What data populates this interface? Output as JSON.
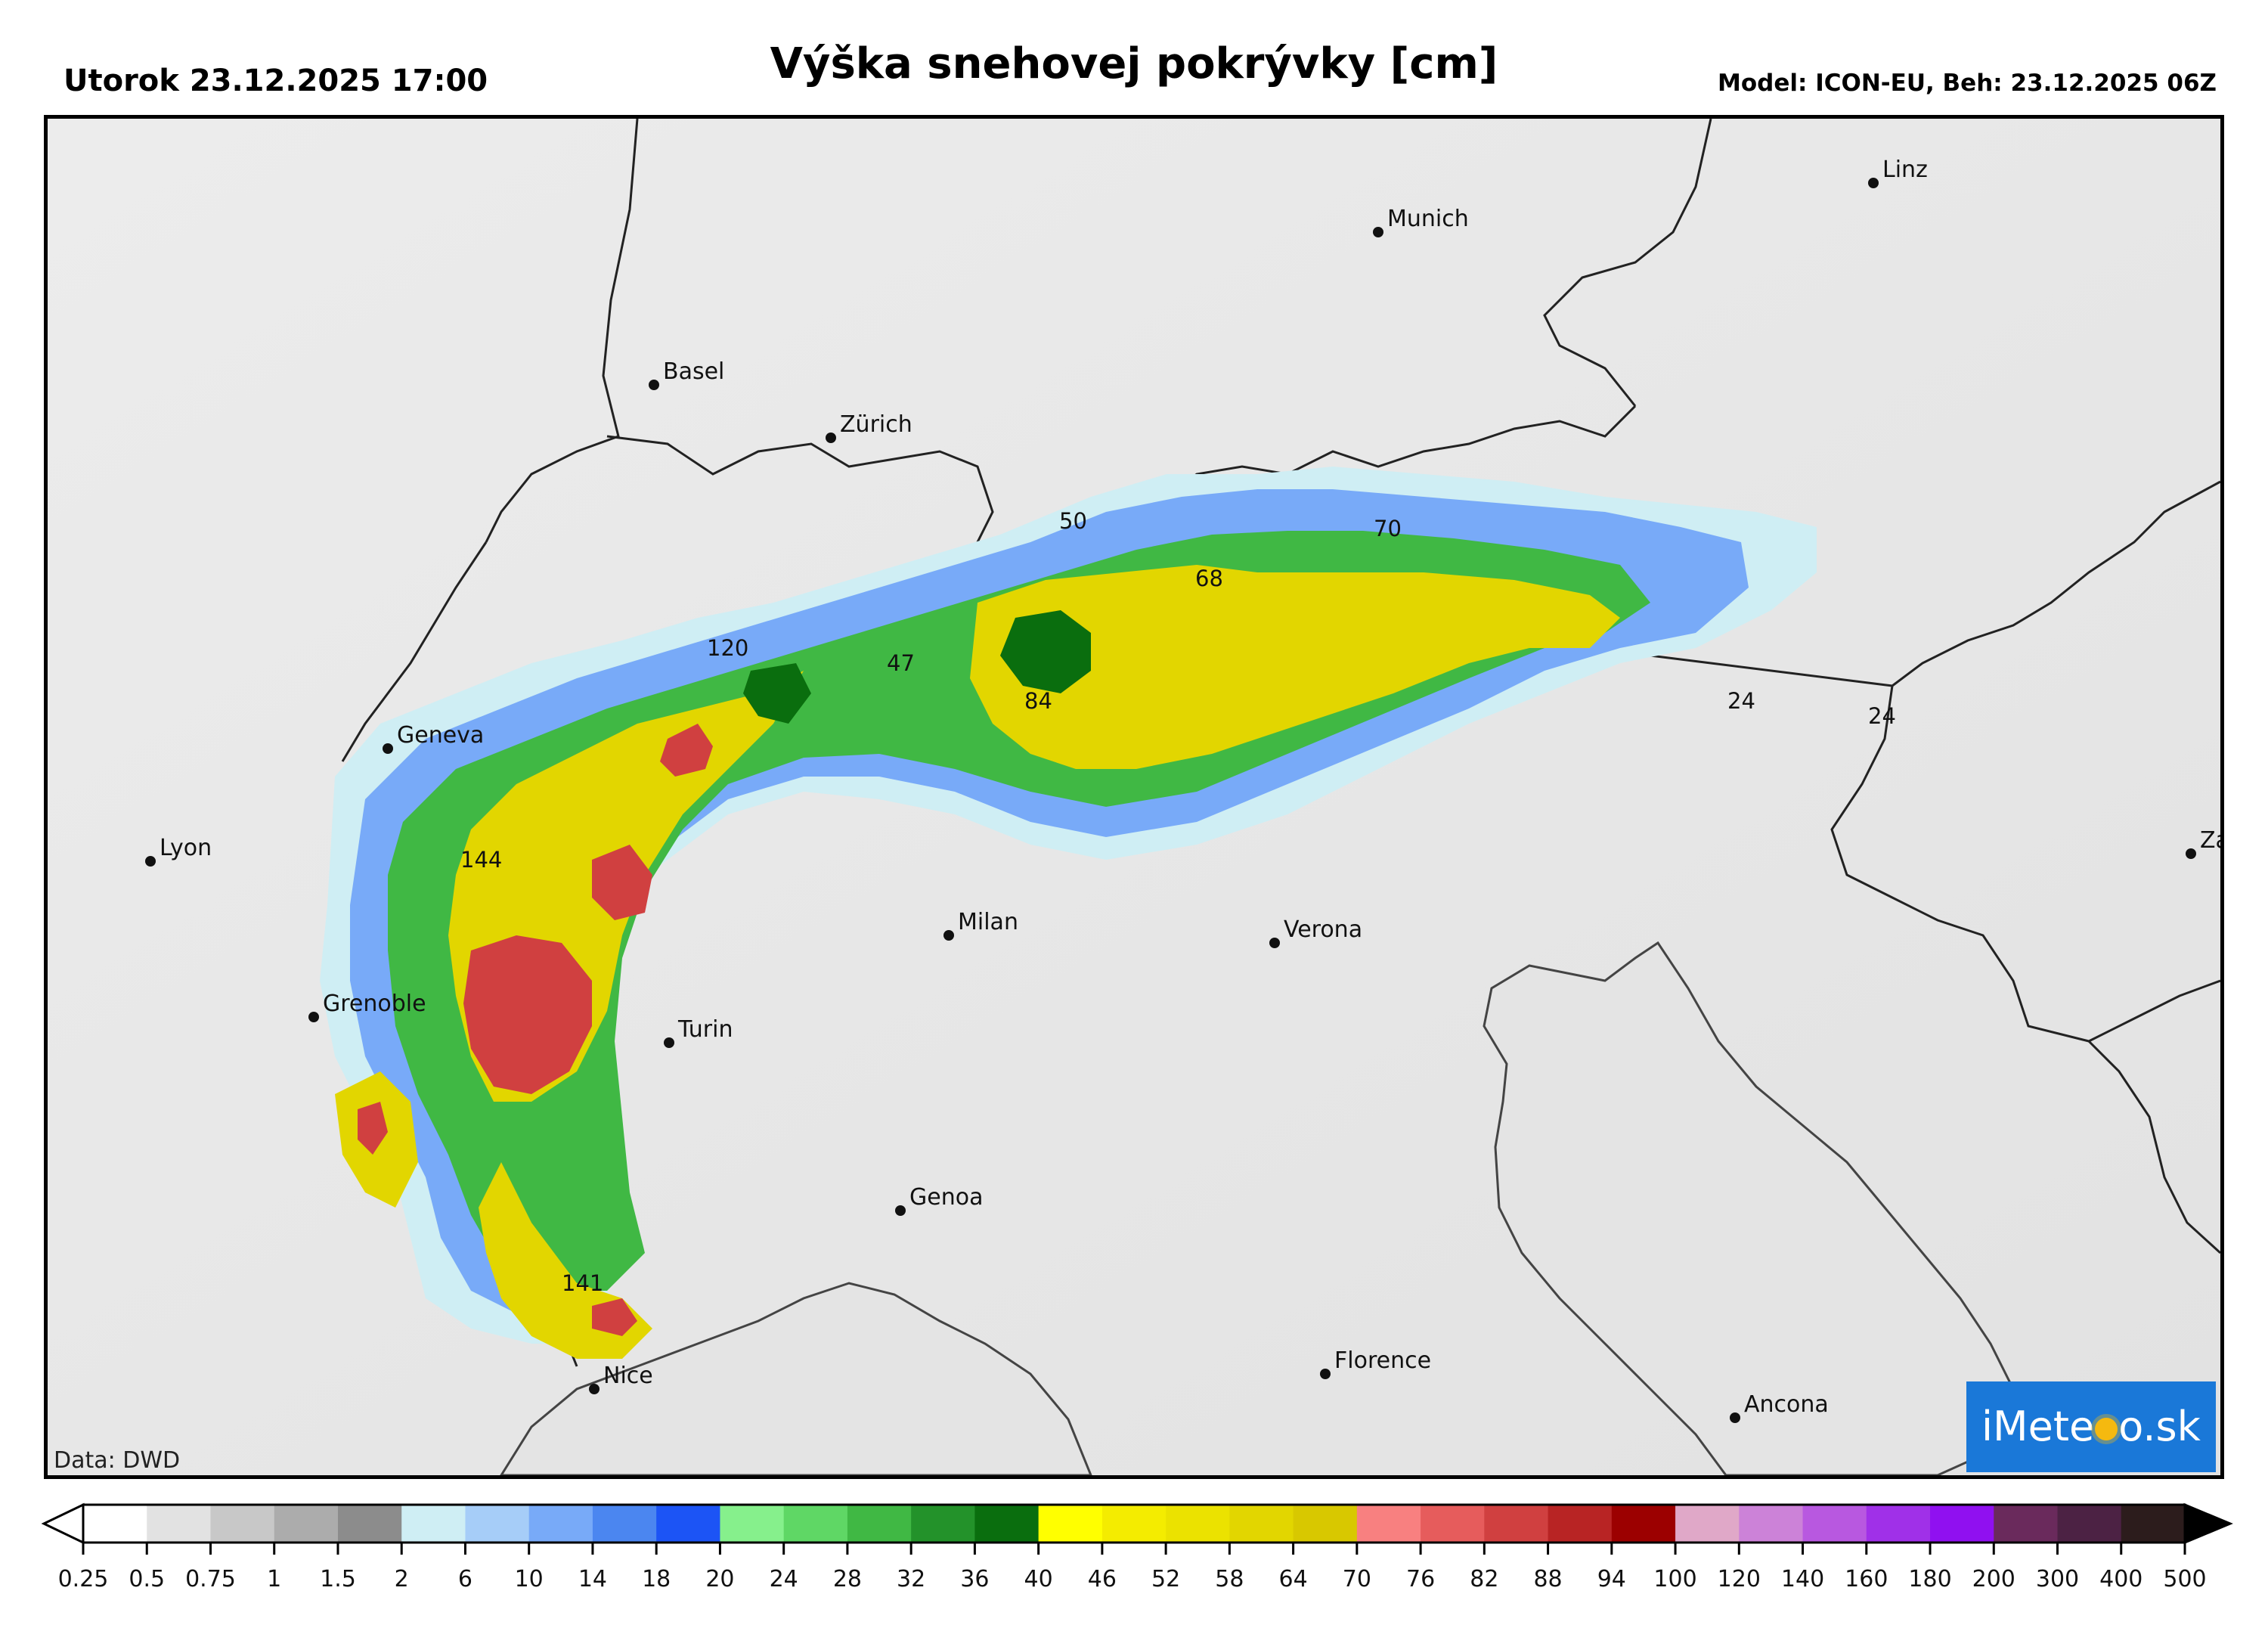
{
  "header": {
    "left": "Utorok 23.12.2025 17:00",
    "title": "Výška snehovej pokrývky [cm]",
    "right": "Model: ICON-EU, Beh: 23.12.2025 06Z"
  },
  "map": {
    "credit": "Data: DWD",
    "logo": {
      "text_a": "iMete",
      "text_b": "o.sk"
    },
    "cities": [
      {
        "name": "Linz"
      },
      {
        "name": "Munich"
      },
      {
        "name": "Basel"
      },
      {
        "name": "Zürich"
      },
      {
        "name": "Geneva"
      },
      {
        "name": "Lyon"
      },
      {
        "name": "Grenoble"
      },
      {
        "name": "Turin"
      },
      {
        "name": "Milan"
      },
      {
        "name": "Verona"
      },
      {
        "name": "Genoa"
      },
      {
        "name": "Nice"
      },
      {
        "name": "Florence"
      },
      {
        "name": "Ancona"
      },
      {
        "name": "Zagreb"
      }
    ],
    "max_values": [
      "120",
      "144",
      "141",
      "50",
      "68",
      "70",
      "47",
      "84",
      "24",
      "24"
    ]
  },
  "legend": {
    "ticks": [
      "0.25",
      "0.5",
      "0.75",
      "1",
      "1.5",
      "2",
      "6",
      "10",
      "14",
      "18",
      "20",
      "24",
      "28",
      "32",
      "36",
      "40",
      "46",
      "52",
      "58",
      "64",
      "70",
      "76",
      "82",
      "88",
      "94",
      "100",
      "120",
      "140",
      "160",
      "180",
      "200",
      "300",
      "400",
      "500"
    ],
    "colors": [
      "#ffffff",
      "#e2e2e2",
      "#c8c8c8",
      "#acacac",
      "#8c8c8c",
      "#cfeef4",
      "#a6cdf8",
      "#78aaf8",
      "#4b86f0",
      "#1c54f5",
      "#86f08c",
      "#5fd765",
      "#40b844",
      "#23922a",
      "#0a6e0e",
      "#ffff00",
      "#f4ec00",
      "#ebe200",
      "#e2d600",
      "#d8c800",
      "#f88080",
      "#e65c5c",
      "#d04040",
      "#b82424",
      "#9c0000",
      "#e0a8c8",
      "#cc82d8",
      "#b858e0",
      "#a030e8",
      "#9010f0",
      "#6a2a5c",
      "#4c2244",
      "#2c1c1c"
    ]
  }
}
